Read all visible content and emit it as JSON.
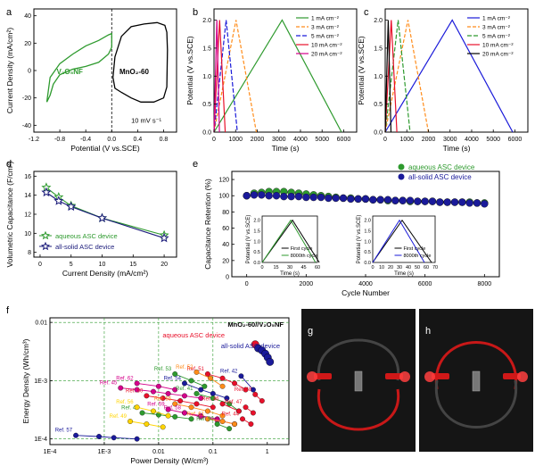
{
  "figure": {
    "panel_labels": [
      "a",
      "b",
      "c",
      "d",
      "e",
      "f",
      "g",
      "h"
    ],
    "colors": {
      "green": "#2e9a2e",
      "black": "#000000",
      "orange": "#ff8c1a",
      "blue": "#1a1ad9",
      "red": "#e8102a",
      "magenta": "#d4008a",
      "darkgreen": "#1a7a1a",
      "navy": "#1a1a7a"
    }
  },
  "chart_data": [
    {
      "panel": "a",
      "type": "line",
      "xlabel": "Potential (V vs.SCE)",
      "ylabel": "Current Density (mA/cm²)",
      "xticks": [
        "-1.2",
        "-0.8",
        "-0.4",
        "0.0",
        "0.4",
        "0.8"
      ],
      "yticks": [
        "-40",
        "-20",
        "0",
        "20",
        "40"
      ],
      "xlim": [
        -1.2,
        1.0
      ],
      "ylim": [
        -45,
        45
      ],
      "annotations": [
        "V₂O₅NF",
        "MnO₂-60",
        "10 mV s⁻¹"
      ],
      "series": [
        {
          "label": "V₂O₅NF",
          "color": "#2e9a2e",
          "x": [
            -1.0,
            -0.95,
            -0.9,
            -0.8,
            -0.6,
            -0.4,
            -0.2,
            -0.05,
            0.0,
            0.0,
            -0.05,
            -0.2,
            -0.4,
            -0.6,
            -0.8,
            -0.95,
            -1.0
          ],
          "y": [
            -23,
            -18,
            -10,
            -3,
            1,
            3,
            6,
            12,
            17,
            27,
            26,
            22,
            18,
            12,
            5,
            -5,
            -23
          ]
        },
        {
          "label": "MnO₂-60",
          "color": "#000000",
          "x": [
            0.02,
            0.05,
            0.15,
            0.3,
            0.5,
            0.7,
            0.82,
            0.85,
            0.86,
            0.85,
            0.8,
            0.65,
            0.45,
            0.3,
            0.15,
            0.05,
            0.02
          ],
          "y": [
            -5,
            10,
            25,
            32,
            34,
            35,
            33,
            28,
            15,
            -12,
            -20,
            -23,
            -23,
            -20,
            -16,
            -13,
            -5
          ]
        }
      ]
    },
    {
      "panel": "b",
      "type": "line",
      "xlabel": "Time (s)",
      "ylabel": "Potential (V vs.SCE)",
      "xticks": [
        "0",
        "1000",
        "2000",
        "3000",
        "4000",
        "5000",
        "6000"
      ],
      "yticks": [
        "0.0",
        "0.5",
        "1.0",
        "1.5",
        "2.0"
      ],
      "xlim": [
        0,
        6600
      ],
      "ylim": [
        0,
        2.2
      ],
      "legend": [
        "1 mA cm⁻²",
        "3 mA cm⁻²",
        "5 mA cm⁻²",
        "10 mA cm⁻²",
        "20 mA cm⁻²"
      ],
      "series": [
        {
          "name": "1 mA cm⁻²",
          "color": "#2e9a2e",
          "dash": "",
          "x": [
            0,
            3150,
            5900
          ],
          "y": [
            0,
            2.0,
            0
          ]
        },
        {
          "name": "3 mA cm⁻²",
          "color": "#ff8c1a",
          "dash": "4,2",
          "x": [
            0,
            1020,
            1960
          ],
          "y": [
            0,
            2.0,
            0
          ]
        },
        {
          "name": "5 mA cm⁻²",
          "color": "#1a1ad9",
          "dash": "5,2",
          "x": [
            0,
            560,
            1080
          ],
          "y": [
            0,
            2.0,
            0
          ]
        },
        {
          "name": "10 mA cm⁻²",
          "color": "#e8102a",
          "dash": "",
          "x": [
            0,
            260,
            520
          ],
          "y": [
            0,
            2.0,
            0
          ]
        },
        {
          "name": "20 mA cm⁻²",
          "color": "#d4008a",
          "dash": "",
          "x": [
            0,
            130,
            250
          ],
          "y": [
            0,
            2.0,
            0
          ]
        }
      ]
    },
    {
      "panel": "c",
      "type": "line",
      "xlabel": "Time (s)",
      "ylabel": "Potential (V vs.SCE)",
      "xticks": [
        "0",
        "1000",
        "2000",
        "3000",
        "4000",
        "5000",
        "6000"
      ],
      "yticks": [
        "0.0",
        "0.5",
        "1.0",
        "1.5",
        "2.0"
      ],
      "xlim": [
        0,
        6600
      ],
      "ylim": [
        0,
        2.2
      ],
      "legend": [
        "1 mA cm⁻²",
        "3 mA cm⁻²",
        "5 mA cm⁻²",
        "10 mA cm⁻²",
        "20 mA cm⁻²"
      ],
      "series": [
        {
          "name": "1 mA cm⁻²",
          "color": "#1a1ad9",
          "dash": "",
          "x": [
            0,
            3100,
            5900
          ],
          "y": [
            0,
            2.0,
            0
          ]
        },
        {
          "name": "3 mA cm⁻²",
          "color": "#ff8c1a",
          "dash": "4,2",
          "x": [
            0,
            1050,
            2000
          ],
          "y": [
            0,
            2.0,
            0
          ]
        },
        {
          "name": "5 mA cm⁻²",
          "color": "#2e9a2e",
          "dash": "5,2",
          "x": [
            0,
            600,
            1150
          ],
          "y": [
            0,
            2.0,
            0
          ]
        },
        {
          "name": "10 mA cm⁻²",
          "color": "#e8102a",
          "dash": "",
          "x": [
            0,
            280,
            540
          ],
          "y": [
            0,
            2.0,
            0
          ]
        },
        {
          "name": "20 mA cm⁻²",
          "color": "#000000",
          "dash": "",
          "x": [
            0,
            140,
            270
          ],
          "y": [
            0,
            2.0,
            0
          ]
        }
      ]
    },
    {
      "panel": "d",
      "type": "line",
      "xlabel": "Current Density (mA/cm²)",
      "ylabel": "Volumetric Capacitance (F/cm³)",
      "xticks": [
        "0",
        "5",
        "10",
        "15",
        "20"
      ],
      "yticks": [
        "8",
        "10",
        "12",
        "14",
        "16"
      ],
      "xlim": [
        -1,
        22
      ],
      "ylim": [
        7.5,
        16.5
      ],
      "legend": [
        "aqueous ASC device",
        "all-solid ASC device"
      ],
      "series": [
        {
          "name": "aqueous ASC device",
          "color": "#2e9a2e",
          "x": [
            1,
            3,
            5,
            10,
            20
          ],
          "y": [
            14.8,
            13.8,
            12.9,
            11.6,
            9.8
          ]
        },
        {
          "name": "all-solid ASC device",
          "color": "#1a1a7a",
          "x": [
            1,
            3,
            5,
            10,
            20
          ],
          "y": [
            14.3,
            13.4,
            12.8,
            11.6,
            9.5
          ]
        }
      ]
    },
    {
      "panel": "e",
      "type": "scatter",
      "xlabel": "Cycle Number",
      "ylabel": "Capacitance Retention (%)",
      "xticks": [
        "0",
        "2000",
        "4000",
        "6000",
        "8000"
      ],
      "yticks": [
        "0",
        "20",
        "40",
        "60",
        "80",
        "100",
        "120"
      ],
      "xlim": [
        -500,
        8500
      ],
      "ylim": [
        0,
        130
      ],
      "legend": [
        "aqueous ASC device",
        "all-solid ASC device"
      ],
      "series": [
        {
          "name": "aqueous ASC device",
          "color": "#2e9a2e",
          "x": [
            0,
            250,
            500,
            750,
            1000,
            1250,
            1500,
            1750,
            2000,
            2250,
            2500,
            2750,
            3000,
            3250,
            3500,
            3750,
            4000,
            4250,
            4500,
            4750,
            5000,
            5250,
            5500,
            5750,
            6000,
            6250,
            6500,
            6750,
            7000,
            7250,
            7500,
            7750,
            8000
          ],
          "y": [
            100,
            103,
            104,
            105,
            105,
            105,
            104,
            103,
            102,
            101,
            100,
            99,
            98,
            97,
            97,
            96,
            96,
            95,
            95,
            94,
            94,
            94,
            93,
            93,
            93,
            93,
            92,
            92,
            92,
            92,
            92,
            91,
            91
          ]
        },
        {
          "name": "all-solid ASC device",
          "color": "#1a1a9a",
          "x": [
            0,
            250,
            500,
            750,
            1000,
            1250,
            1500,
            1750,
            2000,
            2250,
            2500,
            2750,
            3000,
            3250,
            3500,
            3750,
            4000,
            4250,
            4500,
            4750,
            5000,
            5250,
            5500,
            5750,
            6000,
            6250,
            6500,
            6750,
            7000,
            7250,
            7500,
            7750,
            8000
          ],
          "y": [
            100,
            101,
            101,
            100,
            100,
            99,
            99,
            99,
            98,
            98,
            98,
            97,
            97,
            97,
            96,
            96,
            96,
            95,
            95,
            95,
            94,
            94,
            94,
            93,
            93,
            93,
            92,
            92,
            92,
            92,
            91,
            91,
            90
          ]
        }
      ],
      "insets": [
        {
          "xlabel": "Time (s)",
          "ylabel": "Potential (V vs.SCE)",
          "xticks": [
            "0",
            "15",
            "30",
            "45",
            "60"
          ],
          "yticks": [
            "0.0",
            "0.5",
            "1.0",
            "1.5",
            "2.0"
          ],
          "legend": [
            "First cycle",
            "8000th cycle"
          ],
          "series": [
            {
              "name": "First cycle",
              "color": "#000000",
              "x": [
                0,
                33,
                62
              ],
              "y": [
                0,
                2.0,
                0
              ]
            },
            {
              "name": "8000th cycle",
              "color": "#2e9a2e",
              "x": [
                0,
                31,
                58
              ],
              "y": [
                0,
                2.0,
                0
              ]
            }
          ]
        },
        {
          "xlabel": "Time (s)",
          "ylabel": "Potential (V vs.SCE)",
          "xticks": [
            "0",
            "10",
            "20",
            "30",
            "40",
            "50",
            "60",
            "70"
          ],
          "yticks": [
            "0.0",
            "0.5",
            "1.0",
            "1.5",
            "2.0"
          ],
          "legend": [
            "First cycle",
            "8000th cycle"
          ],
          "series": [
            {
              "name": "First cycle",
              "color": "#000000",
              "x": [
                0,
                33,
                66
              ],
              "y": [
                0,
                2.0,
                0
              ]
            },
            {
              "name": "8000th cycle",
              "color": "#1a1ad9",
              "x": [
                0,
                30,
                58
              ],
              "y": [
                0,
                2.0,
                0
              ]
            }
          ]
        }
      ]
    },
    {
      "panel": "f",
      "type": "scatter",
      "xlabel": "Power Density (W/cm³)",
      "ylabel": "Energy Density (Wh/cm³)",
      "xticks": [
        "1E-4",
        "1E-3",
        "0.01",
        "0.1",
        "1"
      ],
      "yticks": [
        "1E-4",
        "1E-3",
        "0.01"
      ],
      "log_x": true,
      "log_y": true,
      "xlim": [
        0.0001,
        2.5
      ],
      "ylim": [
        8e-05,
        0.012
      ],
      "annotations": [
        "MnO₂-60//V₂O₅NF",
        "aqueous ASC device",
        "all-solid ASC device"
      ],
      "series": [
        {
          "name": "aqueous ASC device",
          "color": "#e8102a",
          "x": [
            0.6
          ],
          "y": [
            0.0042
          ]
        },
        {
          "name": "all-solid ASC device",
          "color": "#1a1a9a",
          "x": [
            0.68,
            0.8,
            0.92,
            1.02,
            1.12
          ],
          "y": [
            0.0036,
            0.0033,
            0.0029,
            0.0025,
            0.0021
          ]
        }
      ],
      "refs": [
        {
          "label": "Ref. 57",
          "color": "#1a1a9a",
          "x": [
            0.0003,
            0.0008,
            0.0015,
            0.004
          ],
          "y": [
            0.000115,
            0.00011,
            0.000105,
            0.0001
          ]
        },
        {
          "label": "Ref. 42",
          "color": "#1a1a9a",
          "x": [
            0.33,
            0.55
          ],
          "y": [
            0.0012,
            0.0007
          ]
        },
        {
          "label": "Ref. 48",
          "color": "#e8102a",
          "x": [
            0.6,
            0.8
          ],
          "y": [
            0.00058,
            0.00045
          ]
        },
        {
          "label": "Ref. 51",
          "color": "#e8102a",
          "x": [
            0.08,
            0.15,
            0.25,
            0.4
          ],
          "y": [
            0.0013,
            0.0011,
            0.0009,
            0.0007
          ]
        },
        {
          "label": "Ref. 52",
          "color": "#ff8c1a",
          "x": [
            0.05,
            0.09,
            0.15
          ],
          "y": [
            0.0014,
            0.0011,
            0.0008
          ]
        },
        {
          "label": "Ref. 53",
          "color": "#2e9a2e",
          "x": [
            0.02,
            0.04,
            0.07
          ],
          "y": [
            0.0013,
            0.001,
            0.0008
          ]
        },
        {
          "label": "Ref. 54",
          "color": "#1a1a9a",
          "x": [
            0.03,
            0.06,
            0.1,
            0.18
          ],
          "y": [
            0.0009,
            0.0007,
            0.0006,
            0.0005
          ]
        },
        {
          "label": "Ref. 45",
          "color": "#d4008a",
          "x": [
            0.002,
            0.004,
            0.008,
            0.015,
            0.03,
            0.06
          ],
          "y": [
            0.00075,
            0.0007,
            0.00065,
            0.0006,
            0.00055,
            0.0005
          ]
        },
        {
          "label": "Ref. 62",
          "color": "#d4008a",
          "x": [
            0.004,
            0.01,
            0.02
          ],
          "y": [
            0.0009,
            0.0008,
            0.0007
          ]
        },
        {
          "label": "Ref. 60",
          "color": "#e8102a",
          "x": [
            0.006,
            0.012,
            0.025,
            0.05,
            0.1
          ],
          "y": [
            0.00055,
            0.0005,
            0.00045,
            0.0004,
            0.00035
          ]
        },
        {
          "label": "Ref. 55",
          "color": "#ff8c1a",
          "x": [
            0.02,
            0.04,
            0.08,
            0.15
          ],
          "y": [
            0.0004,
            0.00035,
            0.0003,
            0.00025
          ]
        },
        {
          "label": "Ref. 41",
          "color": "#2e9a2e",
          "x": [
            0.05,
            0.1,
            0.2,
            0.3
          ],
          "y": [
            0.0006,
            0.0005,
            0.0004,
            0.0003
          ]
        },
        {
          "label": "Ref. 46",
          "color": "#e8102a",
          "x": [
            0.15,
            0.3
          ],
          "y": [
            0.0004,
            0.0003
          ]
        },
        {
          "label": "Ref. 47",
          "color": "#e8102a",
          "x": [
            0.4,
            0.55
          ],
          "y": [
            0.00035,
            0.00028
          ]
        },
        {
          "label": "Ref. 43",
          "color": "#2e9a2e",
          "x": [
            0.005,
            0.01,
            0.02,
            0.04
          ],
          "y": [
            0.00028,
            0.00026,
            0.00024,
            0.00022
          ]
        },
        {
          "label": "Ref. 56",
          "color": "#ffd400",
          "x": [
            0.004,
            0.008,
            0.015
          ],
          "y": [
            0.00035,
            0.0003,
            0.00025
          ]
        },
        {
          "label": "Ref. 59",
          "color": "#d4008a",
          "x": [
            0.015,
            0.03,
            0.06,
            0.12
          ],
          "y": [
            0.00032,
            0.00028,
            0.00025,
            0.00022
          ]
        },
        {
          "label": "Ref. 58",
          "color": "#d4008a",
          "x": [
            0.03,
            0.06,
            0.12,
            0.25
          ],
          "y": [
            0.00028,
            0.00024,
            0.00021,
            0.00018
          ]
        },
        {
          "label": "Ref. 49",
          "color": "#ffd400",
          "x": [
            0.003,
            0.006,
            0.012
          ],
          "y": [
            0.0002,
            0.00018,
            0.00016
          ]
        },
        {
          "label": "Ref. 44",
          "color": "#e8102a",
          "x": [
            0.35,
            0.5
          ],
          "y": [
            0.00022,
            0.00018
          ]
        },
        {
          "label": "Ref. 61",
          "color": "#ff8c1a",
          "x": [
            0.08,
            0.15,
            0.25
          ],
          "y": [
            0.00022,
            0.0002,
            0.00018
          ]
        },
        {
          "label": "Ref. 50",
          "color": "#2e9a2e",
          "x": [
            0.12,
            0.2
          ],
          "y": [
            0.00018,
            0.00015
          ]
        }
      ]
    }
  ],
  "photos": {
    "g": {
      "caption": ""
    },
    "h": {
      "caption": ""
    }
  }
}
